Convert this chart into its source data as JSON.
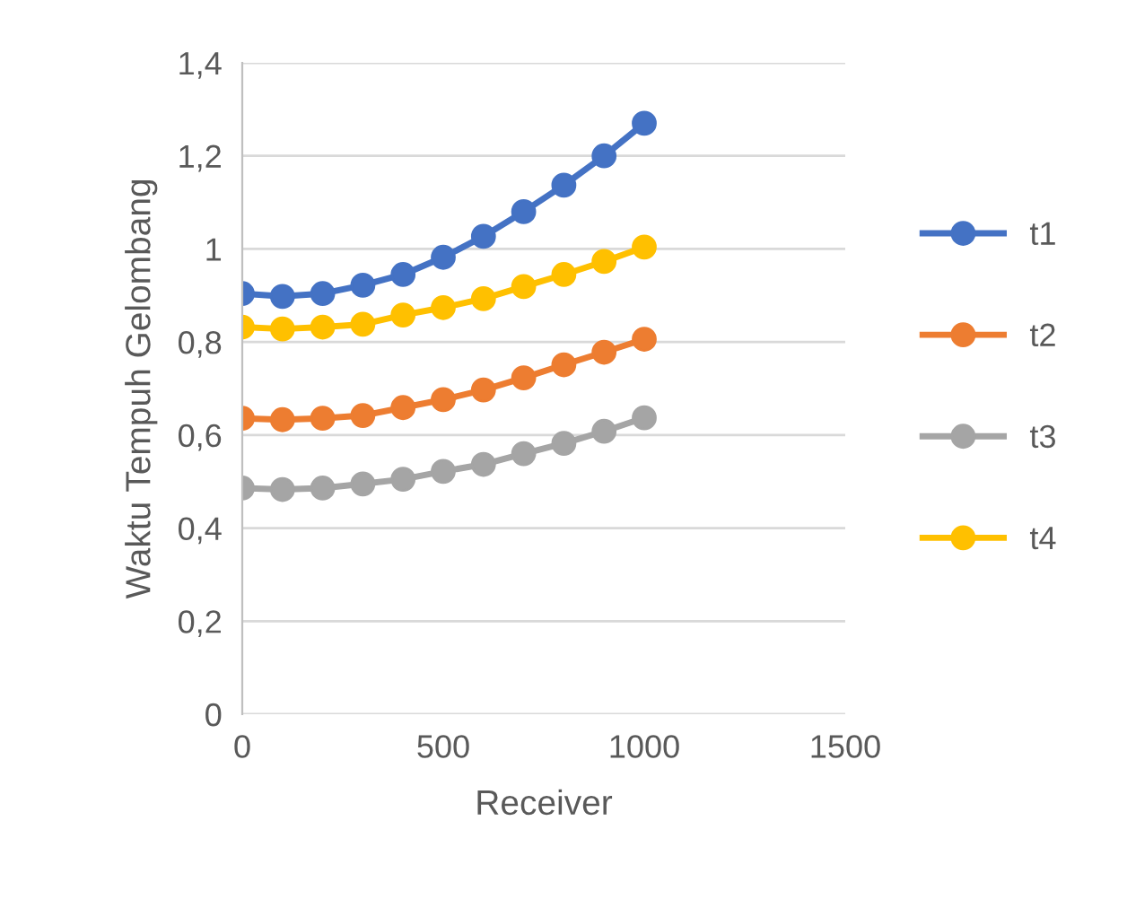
{
  "chart_data": {
    "type": "line",
    "xlabel": "Receiver",
    "ylabel": "Waktu Tempuh Gelombang",
    "x": [
      0,
      100,
      200,
      300,
      400,
      500,
      600,
      700,
      800,
      900,
      1000
    ],
    "series": [
      {
        "name": "t1",
        "color": "#4472c4",
        "values": [
          0.904,
          0.898,
          0.904,
          0.922,
          0.945,
          0.982,
          1.027,
          1.08,
          1.137,
          1.2,
          1.27
        ]
      },
      {
        "name": "t2",
        "color": "#ed7d31",
        "values": [
          0.636,
          0.633,
          0.636,
          0.642,
          0.659,
          0.676,
          0.697,
          0.723,
          0.751,
          0.778,
          0.806
        ]
      },
      {
        "name": "t3",
        "color": "#a5a5a5",
        "values": [
          0.486,
          0.483,
          0.486,
          0.495,
          0.505,
          0.522,
          0.537,
          0.56,
          0.582,
          0.608,
          0.637
        ]
      },
      {
        "name": "t4",
        "color": "#ffc000",
        "values": [
          0.832,
          0.828,
          0.832,
          0.838,
          0.858,
          0.874,
          0.893,
          0.919,
          0.945,
          0.973,
          1.004
        ]
      }
    ],
    "xlim": [
      0,
      1500
    ],
    "xticks": [
      0,
      500,
      1000,
      1500
    ],
    "ylim": [
      0,
      1.4
    ],
    "yticks": [
      0,
      {
        "value": 0.2,
        "label": "0,2"
      },
      {
        "value": 0.4,
        "label": "0,4"
      },
      {
        "value": 0.6,
        "label": "0,6"
      },
      {
        "value": 0.8,
        "label": "0,8"
      },
      1,
      {
        "value": 1.2,
        "label": "1,2"
      },
      {
        "value": 1.4,
        "label": "1,4"
      }
    ],
    "grid": "y",
    "legend": "right",
    "marker": "circle",
    "line_style": "solid"
  }
}
